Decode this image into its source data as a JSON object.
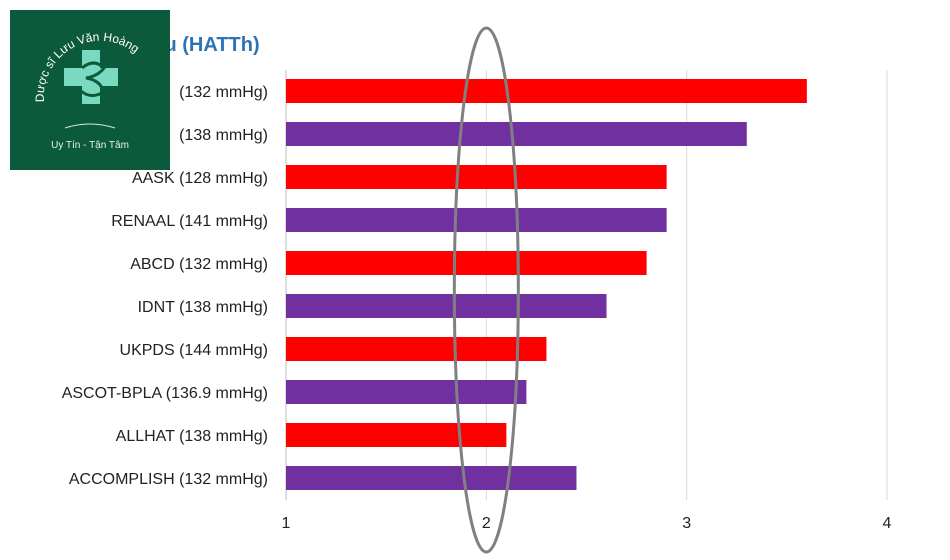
{
  "chart_data": {
    "type": "bar",
    "orientation": "horizontal",
    "title": "ưu (HATTh)",
    "xlabel": "",
    "ylabel": "",
    "xlim": [
      1,
      4
    ],
    "xticks": [
      "1",
      "2",
      "3",
      "4"
    ],
    "categories": [
      "(132 mmHg)",
      "(138 mmHg)",
      "AASK (128 mmHg)",
      "RENAAL (141 mmHg)",
      "ABCD (132 mmHg)",
      "IDNT (138 mmHg)",
      "UKPDS (144 mmHg)",
      "ASCOT-BPLA (136.9 mmHg)",
      "ALLHAT (138 mmHg)",
      "ACCOMPLISH (132 mmHg)"
    ],
    "values": [
      3.6,
      3.3,
      2.9,
      2.9,
      2.8,
      2.6,
      2.3,
      2.2,
      2.1,
      2.45
    ],
    "bar_colors": [
      "#ff0000",
      "#7030a0",
      "#ff0000",
      "#7030a0",
      "#ff0000",
      "#7030a0",
      "#ff0000",
      "#7030a0",
      "#ff0000",
      "#7030a0"
    ],
    "grid": "vertical",
    "highlight": {
      "type": "ellipse",
      "around_x": 2,
      "color": "#808080"
    }
  },
  "logo": {
    "name": "Dược sĩ Lưu Văn Hoàng",
    "slogan": "Uy Tín - Tận Tâm",
    "background": "#0b5a3c"
  }
}
